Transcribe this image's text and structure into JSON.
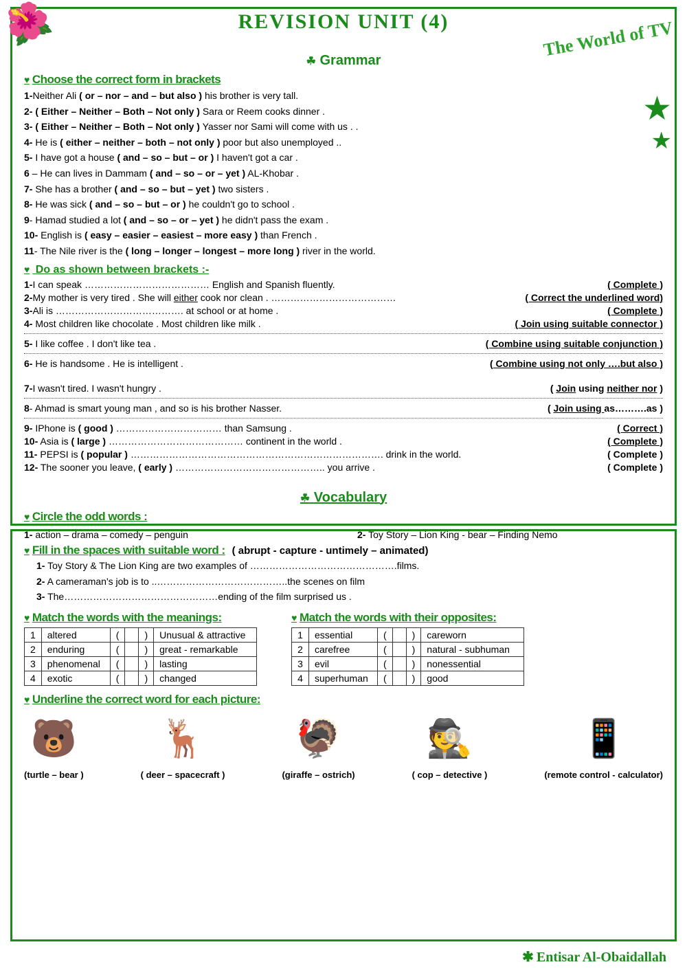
{
  "header": {
    "main_title": "REVISION UNIT (4)",
    "subtitle": "Grammar",
    "side_title": "The World of TV"
  },
  "grammar": {
    "choose_head": "Choose the correct form in brackets",
    "choose": [
      {
        "n": "1-",
        "pre": "Neither Ali ",
        "b": "( or – nor – and – but also )",
        "post": " his brother is very tall."
      },
      {
        "n": "2-",
        "pre": "",
        "b": "( Either – Neither – Both – Not only )",
        "post": " Sara or Reem cooks dinner ."
      },
      {
        "n": "3-",
        "pre": "",
        "b": "( Either – Neither – Both – Not only )",
        "post": " Yasser nor Sami will come with us .  ."
      },
      {
        "n": "4-",
        "pre": " He is ",
        "b": "( either – neither – both  – not only )",
        "post": " poor but also unemployed .."
      },
      {
        "n": "5-",
        "pre": " I have got a house  ",
        "b": "( and – so – but  – or )",
        "post": " I haven't got a car  ."
      },
      {
        "n": "6",
        "pre": " – He can lives in Dammam ",
        "b": "( and – so – or  – yet )",
        "post": " AL-Khobar ."
      },
      {
        "n": "7-",
        "pre": " She has a brother ",
        "b": "( and – so – but – yet )",
        "post": " two sisters ."
      },
      {
        "n": "8-",
        "pre": " He was sick ",
        "b": "( and – so – but – or )",
        "post": " he couldn't go to school ."
      },
      {
        "n": "9",
        "pre": "- Hamad studied a lot ",
        "b": "( and – so – or – yet )",
        "post": " he didn't pass the exam ."
      },
      {
        "n": "10-",
        "pre": " English is ",
        "b": "( easy – easier – easiest – more easy )",
        "post": " than French ."
      },
      {
        "n": "11",
        "pre": "- The Nile river is the ",
        "b": "( long – longer – longest – more long )",
        "post": " river in the world."
      }
    ],
    "doas_head": "Do as shown between brackets :-",
    "doas": [
      {
        "n": "1-",
        "txt": "I can speak ………………………………… English and Spanish fluently.",
        "instr": "( Complete )",
        "u": true
      },
      {
        "n": "2-",
        "txt": "My mother is very tired . She will either  cook nor clean . …………………………………",
        "instr": "( Correct the underlined word)",
        "u": true,
        "under": "either"
      },
      {
        "n": "3-",
        "txt": "Ali is  …………………………………. at school or at home .",
        "instr": "( Complete )",
        "u": true
      },
      {
        "n": "4-",
        "txt": " Most children like chocolate . Most children like milk .",
        "instr": "( Join using suitable connector )",
        "u": true,
        "dots": true
      },
      {
        "n": "5-",
        "txt": " I like coffee . I don't like tea .",
        "instr": "( Combine using suitable conjunction )",
        "u": true,
        "dots": true
      },
      {
        "n": "6-",
        "txt": " He is handsome . He is intelligent  .",
        "instr": "( Combine using not only ….but also )",
        "u": true,
        "dots": false
      },
      {
        "n": "7-",
        "txt": "I wasn't tired. I wasn't hungry .",
        "instr": "( Join using neither nor )",
        "u": true,
        "dots": true,
        "mix": true
      },
      {
        "n": "8",
        "txt": "- Ahmad is smart young man , and so is his brother Nasser.",
        "instr": "( Join using as……….as  )",
        "u": true,
        "dots": true,
        "mix": true
      },
      {
        "n": "9-",
        "txt": " IPhone is ( good ) …………………………… than Samsung .",
        "instr": "( Correct )",
        "u": true,
        "b": "( good )"
      },
      {
        "n": "10-",
        "txt": "  Asia is ( large ) …………………………………… continent in the world .",
        "instr": "( Complete )",
        "u": true,
        "b": "( large )"
      },
      {
        "n": "11-",
        "txt": "  PEPSI is ( popular ) ……………………………………………………………………. drink in the world.",
        "instr": "( Complete )",
        "b": "( popular )"
      },
      {
        "n": "12-",
        "txt": "  The sooner you leave, ( early ) ……………………………………….. you arrive .",
        "instr": "( Complete )",
        "b": "( early )"
      }
    ]
  },
  "vocab": {
    "title": "Vocabulary",
    "circle_head": "Circle the odd words :",
    "circle": [
      {
        "n": "1-",
        "txt": " action – drama  – comedy  – penguin"
      },
      {
        "n": "2-",
        "txt": " Toy Story  –  Lion King  -  bear  – Finding Nemo"
      }
    ],
    "fill_head": "Fill in the spaces with suitable word :",
    "fill_bank": "( abrupt - capture - untimely – animated)",
    "fill": [
      {
        "n": "1-",
        "txt": "  Toy Story & The Lion King are two examples of ……………………………………….films."
      },
      {
        "n": "2-",
        "txt": "  A cameraman's job is to ..…………………………………..the scenes on film"
      },
      {
        "n": "3-",
        "txt": "  The…………………………………………ending of the film surprised us ."
      }
    ],
    "match1_head": "Match the words with the meanings:",
    "match1": [
      {
        "n": "1",
        "w": "altered",
        "m": "Unusual & attractive"
      },
      {
        "n": "2",
        "w": "enduring",
        "m": "great - remarkable"
      },
      {
        "n": "3",
        "w": "phenomenal",
        "m": "lasting"
      },
      {
        "n": "4",
        "w": "exotic",
        "m": "changed"
      }
    ],
    "match2_head": "Match the words with their opposites:",
    "match2": [
      {
        "n": "1",
        "w": "essential",
        "m": "careworn"
      },
      {
        "n": "2",
        "w": "carefree",
        "m": "natural - subhuman"
      },
      {
        "n": "3",
        "w": "evil",
        "m": "nonessential"
      },
      {
        "n": "4",
        "w": "superhuman",
        "m": "good"
      }
    ],
    "underline_head": "Underline the correct word for each picture:",
    "pics": [
      {
        "emoji": "🐻",
        "cap": "(turtle – bear )"
      },
      {
        "emoji": "🦌",
        "cap": "( deer – spacecraft )"
      },
      {
        "emoji": "🦃",
        "cap": "(giraffe – ostrich)"
      },
      {
        "emoji": "🕵️",
        "cap": "( cop – detective )"
      },
      {
        "emoji": "📱",
        "cap": "(remote control - calculator)"
      }
    ]
  },
  "author": "Entisar Al-Obaidallah"
}
